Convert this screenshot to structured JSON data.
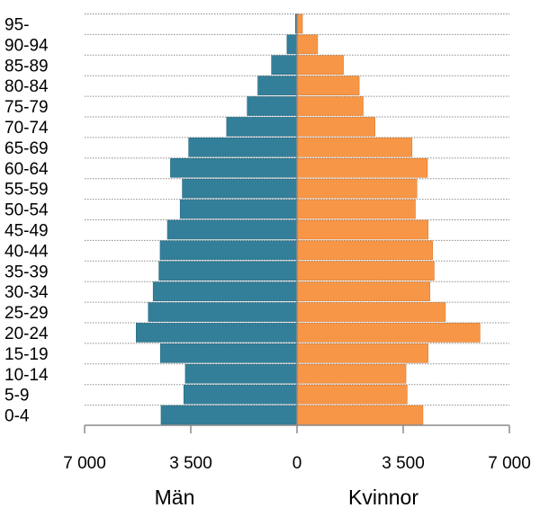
{
  "chart_data": {
    "type": "bar",
    "orientation": "horizontal",
    "layout": "population-pyramid",
    "categories": [
      "95-",
      "90-94",
      "85-89",
      "80-84",
      "75-79",
      "70-74",
      "65-69",
      "60-64",
      "55-59",
      "50-54",
      "45-49",
      "40-44",
      "35-39",
      "30-34",
      "25-29",
      "20-24",
      "15-19",
      "10-14",
      "5-9",
      "0-4"
    ],
    "series": [
      {
        "name": "Män",
        "side": "left",
        "color": "#337f9a",
        "values": [
          50,
          330,
          840,
          1290,
          1640,
          2320,
          3570,
          4170,
          3780,
          3850,
          4270,
          4510,
          4550,
          4740,
          4900,
          5300,
          4500,
          3680,
          3730,
          4480
        ]
      },
      {
        "name": "Kvinnor",
        "side": "right",
        "color": "#f79646",
        "values": [
          180,
          680,
          1530,
          2050,
          2180,
          2570,
          3790,
          4300,
          3950,
          3900,
          4320,
          4470,
          4520,
          4380,
          4890,
          6030,
          4320,
          3590,
          3630,
          4150
        ]
      }
    ],
    "x_ticks": [
      "7 000",
      "3 500",
      "0",
      "3 500",
      "7 000"
    ],
    "xlim": [
      -7000,
      7000
    ],
    "grid": "horizontal dotted",
    "labels": {
      "left": "Män",
      "right": "Kvinnor"
    }
  }
}
